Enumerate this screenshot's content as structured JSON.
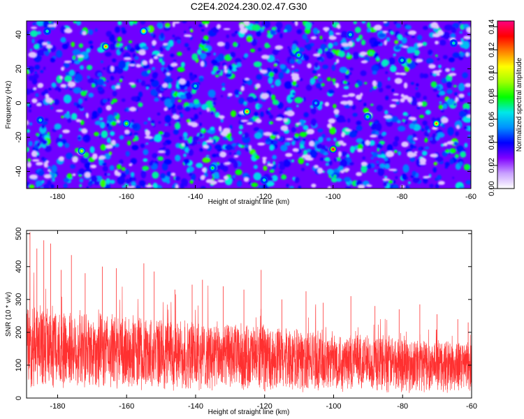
{
  "title": "C2E4.2024.230.02.47.G30",
  "chart_data": [
    {
      "type": "heatmap",
      "xlabel": "Height of straight line (km)",
      "ylabel": "Frequency (Hz)",
      "xlim": [
        -189,
        -60
      ],
      "ylim": [
        -50,
        48
      ],
      "xticks": [
        -180,
        -160,
        -140,
        -120,
        -100,
        -80,
        -60
      ],
      "yticks": [
        -40,
        -20,
        0,
        20,
        40
      ],
      "grid": false,
      "colorbar": {
        "label": "Normalized spectral amplitude",
        "range": [
          0.0,
          0.145
        ],
        "ticks": [
          "0.00",
          "0.02",
          "0.04",
          "0.06",
          "0.08",
          "0.10",
          "0.12",
          "0.14"
        ],
        "colors": [
          "#ffffff",
          "#c8a0ff",
          "#8000ff",
          "#0000ff",
          "#0090ff",
          "#00e8e8",
          "#00ff00",
          "#a0ff00",
          "#ffff00",
          "#ff8000",
          "#ff0000",
          "#ff0080"
        ]
      },
      "description": "noise-like spectrogram dominated by blue/purple speckle (values ~0.02-0.05) with scattered green/cyan spots",
      "peaks": [
        {
          "x": -166,
          "y": 33,
          "value": 0.12
        },
        {
          "x": -155,
          "y": 42,
          "value": 0.11
        },
        {
          "x": -125,
          "y": -5,
          "value": 0.12
        },
        {
          "x": -100,
          "y": -27,
          "value": 0.14
        },
        {
          "x": -70,
          "y": -12,
          "value": 0.12
        },
        {
          "x": -173,
          "y": -28,
          "value": 0.1
        },
        {
          "x": -160,
          "y": -12,
          "value": 0.09
        },
        {
          "x": -183,
          "y": 42,
          "value": 0.07
        },
        {
          "x": -110,
          "y": 28,
          "value": 0.08
        },
        {
          "x": -95,
          "y": 40,
          "value": 0.07
        },
        {
          "x": -90,
          "y": -8,
          "value": 0.08
        },
        {
          "x": -80,
          "y": 25,
          "value": 0.07
        },
        {
          "x": -140,
          "y": 10,
          "value": 0.07
        },
        {
          "x": -135,
          "y": -38,
          "value": 0.08
        },
        {
          "x": -65,
          "y": 35,
          "value": 0.07
        },
        {
          "x": -120,
          "y": -45,
          "value": 0.07
        },
        {
          "x": -105,
          "y": 0,
          "value": 0.06
        },
        {
          "x": -185,
          "y": -10,
          "value": 0.07
        }
      ]
    },
    {
      "type": "line",
      "xlabel": "Height of straight line (km)",
      "ylabel": "SNR (10 * v/v)",
      "xlim": [
        -189,
        -60
      ],
      "ylim": [
        0,
        510
      ],
      "xticks": [
        -180,
        -160,
        -140,
        -120,
        -100,
        -80,
        -60
      ],
      "yticks": [
        0,
        100,
        200,
        300,
        400,
        500
      ],
      "grid": false,
      "series": [
        {
          "color": "#ff3030",
          "description": "dense noisy trace; band roughly 40-260 near -189 km decreasing to 30-180 near -60 km",
          "x": [
            -189,
            -185,
            -180,
            -175,
            -170,
            -165,
            -160,
            -155,
            -150,
            -145,
            -140,
            -135,
            -130,
            -125,
            -120,
            -115,
            -110,
            -105,
            -100,
            -95,
            -90,
            -85,
            -80,
            -75,
            -70,
            -65,
            -60
          ],
          "y": [
            160,
            155,
            150,
            148,
            145,
            142,
            140,
            137,
            135,
            132,
            130,
            128,
            127,
            125,
            123,
            120,
            118,
            115,
            112,
            110,
            108,
            106,
            104,
            102,
            100,
            98,
            95
          ],
          "spikes": [
            {
              "x": -188,
              "y": 505
            },
            {
              "x": -186,
              "y": 455
            },
            {
              "x": -184,
              "y": 480
            },
            {
              "x": -182,
              "y": 470
            },
            {
              "x": -179,
              "y": 390
            },
            {
              "x": -176,
              "y": 435
            },
            {
              "x": -172,
              "y": 380
            },
            {
              "x": -167,
              "y": 400
            },
            {
              "x": -163,
              "y": 395
            },
            {
              "x": -155,
              "y": 410
            },
            {
              "x": -152,
              "y": 385
            },
            {
              "x": -146,
              "y": 330
            },
            {
              "x": -141,
              "y": 345
            },
            {
              "x": -138,
              "y": 360
            },
            {
              "x": -132,
              "y": 340
            },
            {
              "x": -126,
              "y": 330
            },
            {
              "x": -121,
              "y": 390
            },
            {
              "x": -115,
              "y": 300
            },
            {
              "x": -108,
              "y": 325
            },
            {
              "x": -103,
              "y": 290
            },
            {
              "x": -95,
              "y": 310
            },
            {
              "x": -88,
              "y": 280
            },
            {
              "x": -81,
              "y": 270
            },
            {
              "x": -75,
              "y": 285
            },
            {
              "x": -70,
              "y": 255
            },
            {
              "x": -64,
              "y": 240
            },
            {
              "x": -61,
              "y": 230
            }
          ]
        }
      ]
    }
  ]
}
